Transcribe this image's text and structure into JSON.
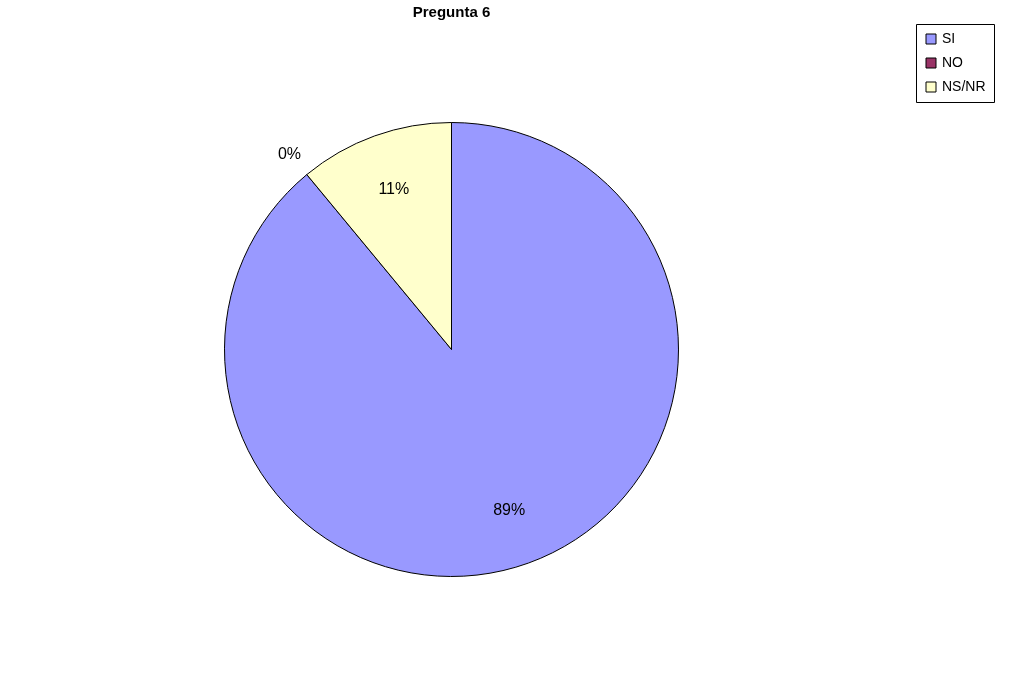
{
  "chart_data": {
    "type": "pie",
    "title": "Pregunta 6",
    "categories": [
      "SI",
      "NO",
      "NS/NR"
    ],
    "values": [
      89,
      0,
      11
    ],
    "colors": [
      "#9999ff",
      "#993366",
      "#ffffcc"
    ],
    "value_labels": [
      "89%",
      "0%",
      "11%"
    ],
    "legend": "right"
  }
}
